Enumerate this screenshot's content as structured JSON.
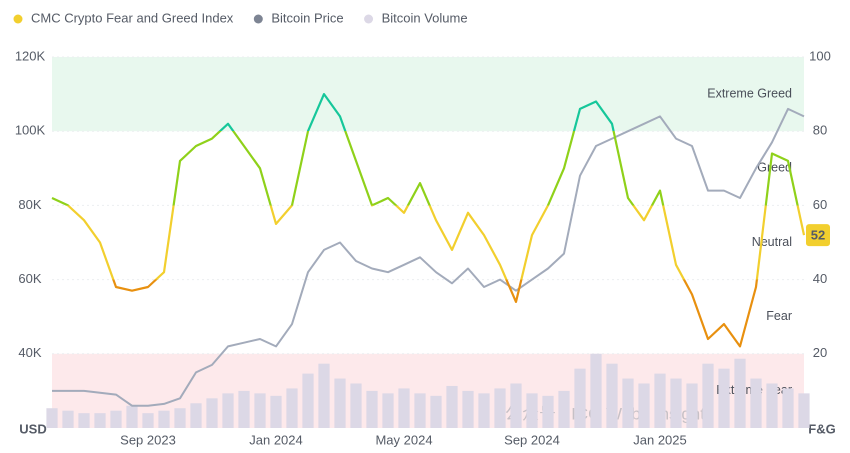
{
  "chart_data": {
    "type": "line",
    "watermark": "公众号 · ICG Web3 Insight",
    "xlabel_left": "USD",
    "xlabel_right": "F&G",
    "categories": [
      null,
      null,
      null,
      null,
      null,
      null,
      "Sep 2023",
      null,
      null,
      null,
      null,
      null,
      null,
      null,
      "Jan 2024",
      null,
      null,
      null,
      null,
      null,
      null,
      null,
      "May 2024",
      null,
      null,
      null,
      null,
      null,
      null,
      null,
      "Sep 2024",
      null,
      null,
      null,
      null,
      null,
      null,
      null,
      "Jan 2025",
      null,
      null,
      null,
      null,
      null,
      null,
      null,
      null,
      null
    ],
    "series": [
      {
        "name": "CMC Crypto Fear and Greed Index",
        "color": "#f2cf2e",
        "axis": "y2",
        "values": [
          62,
          60,
          56,
          50,
          38,
          37,
          38,
          42,
          72,
          76,
          78,
          82,
          76,
          70,
          55,
          60,
          80,
          90,
          84,
          72,
          60,
          62,
          58,
          66,
          56,
          48,
          58,
          52,
          44,
          34,
          52,
          60,
          70,
          86,
          88,
          82,
          62,
          56,
          64,
          44,
          36,
          24,
          28,
          22,
          38,
          74,
          72,
          52
        ]
      },
      {
        "name": "Bitcoin Price",
        "color": "#a3abbb",
        "values": [
          30000,
          30000,
          30000,
          29500,
          29000,
          26000,
          26000,
          26500,
          28000,
          35000,
          37000,
          42000,
          43000,
          44000,
          42000,
          48000,
          62000,
          68000,
          70000,
          65000,
          63000,
          62000,
          64000,
          66000,
          62000,
          59000,
          63000,
          58000,
          60000,
          57000,
          60000,
          63000,
          67000,
          88000,
          96000,
          98000,
          100000,
          102000,
          104000,
          98000,
          96000,
          84000,
          84000,
          82000,
          90000,
          97000,
          106000,
          104000
        ]
      },
      {
        "name": "Bitcoin Volume",
        "color": "#dcd8e6",
        "axis": "y3",
        "values": [
          8,
          7,
          6,
          6,
          7,
          9,
          6,
          7,
          8,
          10,
          12,
          14,
          15,
          14,
          13,
          16,
          22,
          26,
          20,
          18,
          15,
          14,
          16,
          14,
          13,
          17,
          15,
          14,
          16,
          18,
          14,
          13,
          15,
          24,
          30,
          26,
          20,
          18,
          22,
          20,
          18,
          26,
          24,
          28,
          20,
          18,
          16,
          14
        ]
      }
    ],
    "ylim": [
      20000,
      120000
    ],
    "yticks": [
      {
        "value": 40000,
        "label": "40K"
      },
      {
        "value": 60000,
        "label": "60K"
      },
      {
        "value": 80000,
        "label": "80K"
      },
      {
        "value": 100000,
        "label": "100K"
      },
      {
        "value": 120000,
        "label": "120K"
      }
    ],
    "y2lim": [
      0,
      100
    ],
    "y2ticks": [
      20,
      40,
      60,
      80,
      100
    ],
    "y3lim": [
      0,
      150
    ],
    "zones": [
      {
        "label": "Extreme Fear",
        "from": 0,
        "to": 20,
        "color": "#e23d4b",
        "fill": "#fde9eb"
      },
      {
        "label": "Fear",
        "from": 20,
        "to": 40,
        "color": "#e8900f"
      },
      {
        "label": "Neutral",
        "from": 40,
        "to": 60,
        "color": "#f2cf2e"
      },
      {
        "label": "Greed",
        "from": 60,
        "to": 80,
        "color": "#8fd11a"
      },
      {
        "label": "Extreme Greed",
        "from": 80,
        "to": 100,
        "color": "#16c79a",
        "fill": "#e8f8ee"
      }
    ],
    "grid": true,
    "legend": "top-left"
  }
}
